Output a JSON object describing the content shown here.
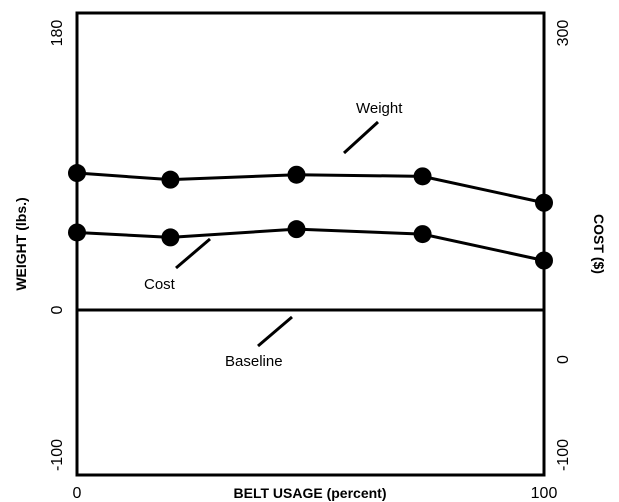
{
  "chart_data": {
    "type": "line",
    "x_axis": {
      "label": "BELT USAGE (percent)",
      "range": [
        0,
        100
      ],
      "tick_labels": [
        "0",
        "100"
      ]
    },
    "y_axis_left": {
      "label": "WEIGHT (lbs.)",
      "range": [
        -100,
        180
      ],
      "tick_labels": [
        "180",
        "0",
        "-100"
      ]
    },
    "y_axis_right": {
      "label": "COST ($)",
      "range": [
        -100,
        300
      ],
      "tick_labels": [
        "300",
        "0",
        "-100"
      ]
    },
    "grid": false,
    "x": [
      0,
      20,
      47,
      74,
      100
    ],
    "series": [
      {
        "name": "Weight",
        "axis": "left",
        "values": [
          83,
          79,
          82,
          81,
          65
        ]
      },
      {
        "name": "Cost",
        "axis": "left",
        "values": [
          47,
          44,
          49,
          46,
          30
        ]
      }
    ],
    "baseline": {
      "name": "Baseline",
      "value": 0
    },
    "annotations": [
      {
        "text": "Weight",
        "series": "Weight"
      },
      {
        "text": "Cost",
        "series": "Cost"
      },
      {
        "text": "Baseline",
        "series": "baseline"
      }
    ]
  }
}
